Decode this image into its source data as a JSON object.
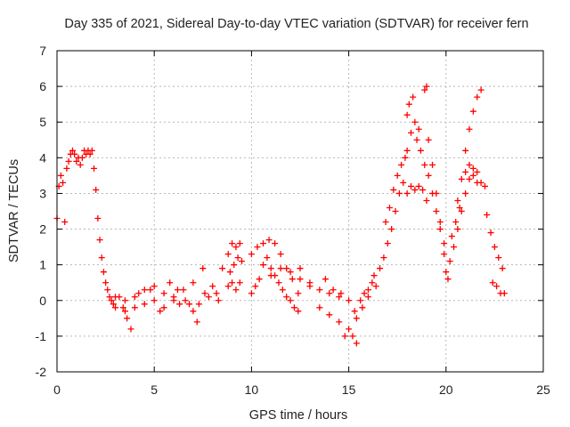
{
  "chart_data": {
    "type": "scatter",
    "title": "Day 335 of 2021, Sidereal Day-to-day VTEC variation (SDTVAR) for receiver fern",
    "xlabel": "GPS time / hours",
    "ylabel": "SDTVAR / TECUs",
    "xlim": [
      0,
      25
    ],
    "ylim": [
      -2,
      7
    ],
    "xticks": [
      "0",
      "5",
      "10",
      "15",
      "20",
      "25"
    ],
    "yticks": [
      "-2",
      "-1",
      "0",
      "1",
      "2",
      "3",
      "4",
      "5",
      "6",
      "7"
    ],
    "grid": true,
    "marker": "plus",
    "series_color": "#ff0000",
    "series": [
      {
        "name": "SDTVAR",
        "points": [
          [
            0.0,
            2.3
          ],
          [
            0.1,
            3.2
          ],
          [
            0.2,
            3.5
          ],
          [
            0.3,
            3.3
          ],
          [
            0.4,
            2.2
          ],
          [
            0.5,
            3.7
          ],
          [
            0.6,
            3.9
          ],
          [
            0.7,
            4.1
          ],
          [
            0.8,
            4.2
          ],
          [
            0.9,
            4.1
          ],
          [
            1.0,
            3.9
          ],
          [
            1.1,
            4.0
          ],
          [
            1.2,
            3.8
          ],
          [
            1.3,
            4.0
          ],
          [
            1.4,
            4.2
          ],
          [
            1.5,
            4.1
          ],
          [
            1.6,
            4.2
          ],
          [
            1.7,
            4.1
          ],
          [
            1.8,
            4.2
          ],
          [
            1.9,
            3.7
          ],
          [
            2.0,
            3.1
          ],
          [
            2.1,
            2.3
          ],
          [
            2.2,
            1.7
          ],
          [
            2.3,
            1.2
          ],
          [
            2.4,
            0.8
          ],
          [
            2.5,
            0.5
          ],
          [
            2.6,
            0.3
          ],
          [
            2.7,
            0.1
          ],
          [
            2.8,
            0.0
          ],
          [
            2.9,
            -0.1
          ],
          [
            3.0,
            -0.2
          ],
          [
            3.2,
            0.1
          ],
          [
            3.4,
            -0.2
          ],
          [
            3.6,
            -0.5
          ],
          [
            3.8,
            -0.8
          ],
          [
            3.0,
            0.1
          ],
          [
            3.5,
            0.0
          ],
          [
            4.0,
            0.1
          ],
          [
            4.5,
            0.3
          ],
          [
            5.0,
            0.4
          ],
          [
            5.5,
            0.2
          ],
          [
            6.0,
            0.0
          ],
          [
            6.3,
            -0.1
          ],
          [
            6.6,
            0.0
          ],
          [
            7.0,
            -0.3
          ],
          [
            7.3,
            -0.1
          ],
          [
            7.6,
            0.2
          ],
          [
            8.0,
            0.4
          ],
          [
            8.3,
            0.0
          ],
          [
            4.0,
            -0.2
          ],
          [
            4.5,
            -0.1
          ],
          [
            5.0,
            0.0
          ],
          [
            5.5,
            -0.2
          ],
          [
            6.0,
            0.1
          ],
          [
            6.5,
            0.3
          ],
          [
            7.0,
            0.5
          ],
          [
            7.5,
            0.9
          ],
          [
            3.5,
            -0.3
          ],
          [
            4.2,
            0.2
          ],
          [
            4.8,
            0.3
          ],
          [
            5.3,
            -0.3
          ],
          [
            5.8,
            0.5
          ],
          [
            6.2,
            0.3
          ],
          [
            6.8,
            -0.1
          ],
          [
            7.2,
            -0.6
          ],
          [
            7.8,
            0.1
          ],
          [
            8.2,
            0.2
          ],
          [
            8.5,
            0.9
          ],
          [
            8.8,
            1.3
          ],
          [
            9.0,
            1.6
          ],
          [
            9.2,
            1.5
          ],
          [
            9.4,
            1.6
          ],
          [
            8.9,
            0.8
          ],
          [
            9.1,
            1.0
          ],
          [
            9.3,
            1.2
          ],
          [
            9.5,
            1.1
          ],
          [
            8.8,
            0.4
          ],
          [
            9.0,
            0.5
          ],
          [
            9.2,
            0.3
          ],
          [
            9.4,
            0.5
          ],
          [
            10.0,
            0.2
          ],
          [
            10.2,
            0.4
          ],
          [
            10.4,
            0.6
          ],
          [
            10.6,
            1.0
          ],
          [
            10.8,
            1.2
          ],
          [
            11.0,
            0.9
          ],
          [
            11.2,
            0.7
          ],
          [
            11.4,
            0.5
          ],
          [
            11.6,
            0.3
          ],
          [
            11.8,
            0.1
          ],
          [
            12.0,
            0.0
          ],
          [
            12.2,
            -0.2
          ],
          [
            12.4,
            -0.3
          ],
          [
            10.0,
            1.3
          ],
          [
            10.3,
            1.5
          ],
          [
            10.6,
            1.6
          ],
          [
            10.9,
            1.7
          ],
          [
            11.2,
            1.6
          ],
          [
            11.5,
            1.3
          ],
          [
            11.8,
            0.9
          ],
          [
            12.1,
            0.6
          ],
          [
            12.4,
            0.2
          ],
          [
            11.0,
            0.7
          ],
          [
            11.5,
            0.9
          ],
          [
            12.0,
            0.8
          ],
          [
            12.5,
            0.6
          ],
          [
            13.0,
            0.5
          ],
          [
            13.5,
            0.3
          ],
          [
            14.0,
            0.2
          ],
          [
            14.5,
            0.1
          ],
          [
            12.5,
            0.9
          ],
          [
            13.0,
            0.4
          ],
          [
            13.5,
            -0.2
          ],
          [
            14.0,
            -0.4
          ],
          [
            14.5,
            -0.6
          ],
          [
            14.8,
            -1.0
          ],
          [
            15.0,
            -0.8
          ],
          [
            15.2,
            -1.0
          ],
          [
            15.4,
            -1.2
          ],
          [
            13.8,
            0.6
          ],
          [
            14.2,
            0.3
          ],
          [
            14.6,
            0.2
          ],
          [
            15.0,
            0.0
          ],
          [
            15.3,
            -0.3
          ],
          [
            15.6,
            0.0
          ],
          [
            15.8,
            0.2
          ],
          [
            16.0,
            0.3
          ],
          [
            16.2,
            0.5
          ],
          [
            16.4,
            0.4
          ],
          [
            15.4,
            -0.5
          ],
          [
            15.7,
            -0.2
          ],
          [
            16.0,
            0.1
          ],
          [
            16.3,
            0.7
          ],
          [
            16.6,
            0.9
          ],
          [
            16.8,
            1.2
          ],
          [
            17.0,
            1.6
          ],
          [
            17.2,
            2.0
          ],
          [
            17.4,
            2.5
          ],
          [
            17.6,
            3.0
          ],
          [
            16.9,
            2.2
          ],
          [
            17.1,
            2.6
          ],
          [
            17.3,
            3.1
          ],
          [
            17.5,
            3.5
          ],
          [
            17.7,
            3.8
          ],
          [
            17.9,
            4.0
          ],
          [
            18.0,
            4.2
          ],
          [
            18.2,
            4.7
          ],
          [
            18.4,
            5.0
          ],
          [
            18.6,
            4.8
          ],
          [
            17.8,
            3.3
          ],
          [
            18.0,
            3.0
          ],
          [
            18.2,
            3.2
          ],
          [
            18.4,
            3.1
          ],
          [
            18.6,
            3.2
          ],
          [
            18.8,
            3.1
          ],
          [
            19.0,
            2.8
          ],
          [
            18.1,
            5.5
          ],
          [
            18.3,
            5.7
          ],
          [
            18.0,
            5.2
          ],
          [
            18.5,
            4.5
          ],
          [
            18.7,
            4.2
          ],
          [
            18.9,
            3.8
          ],
          [
            19.1,
            3.5
          ],
          [
            19.3,
            3.0
          ],
          [
            19.5,
            2.5
          ],
          [
            19.7,
            2.0
          ],
          [
            19.9,
            1.3
          ],
          [
            20.0,
            0.8
          ],
          [
            20.1,
            0.6
          ],
          [
            19.0,
            6.0
          ],
          [
            18.9,
            5.9
          ],
          [
            19.1,
            4.5
          ],
          [
            19.3,
            3.8
          ],
          [
            19.5,
            3.0
          ],
          [
            19.7,
            2.2
          ],
          [
            19.9,
            1.6
          ],
          [
            20.2,
            1.1
          ],
          [
            20.4,
            1.5
          ],
          [
            20.6,
            2.0
          ],
          [
            20.8,
            2.5
          ],
          [
            21.0,
            3.0
          ],
          [
            21.2,
            3.4
          ],
          [
            21.4,
            3.7
          ],
          [
            21.6,
            3.6
          ],
          [
            21.8,
            3.3
          ],
          [
            21.0,
            3.6
          ],
          [
            21.2,
            3.8
          ],
          [
            21.4,
            3.5
          ],
          [
            21.6,
            3.3
          ],
          [
            20.6,
            2.8
          ],
          [
            20.8,
            3.4
          ],
          [
            21.0,
            4.2
          ],
          [
            21.2,
            4.8
          ],
          [
            21.4,
            5.3
          ],
          [
            21.6,
            5.7
          ],
          [
            21.8,
            5.9
          ],
          [
            20.3,
            1.8
          ],
          [
            20.5,
            2.2
          ],
          [
            20.7,
            2.6
          ],
          [
            22.0,
            3.2
          ],
          [
            22.1,
            2.4
          ],
          [
            22.3,
            1.9
          ],
          [
            22.5,
            1.5
          ],
          [
            22.7,
            1.2
          ],
          [
            22.9,
            0.9
          ],
          [
            22.6,
            0.4
          ],
          [
            22.8,
            0.2
          ],
          [
            23.0,
            0.2
          ],
          [
            22.4,
            0.5
          ]
        ]
      }
    ]
  }
}
